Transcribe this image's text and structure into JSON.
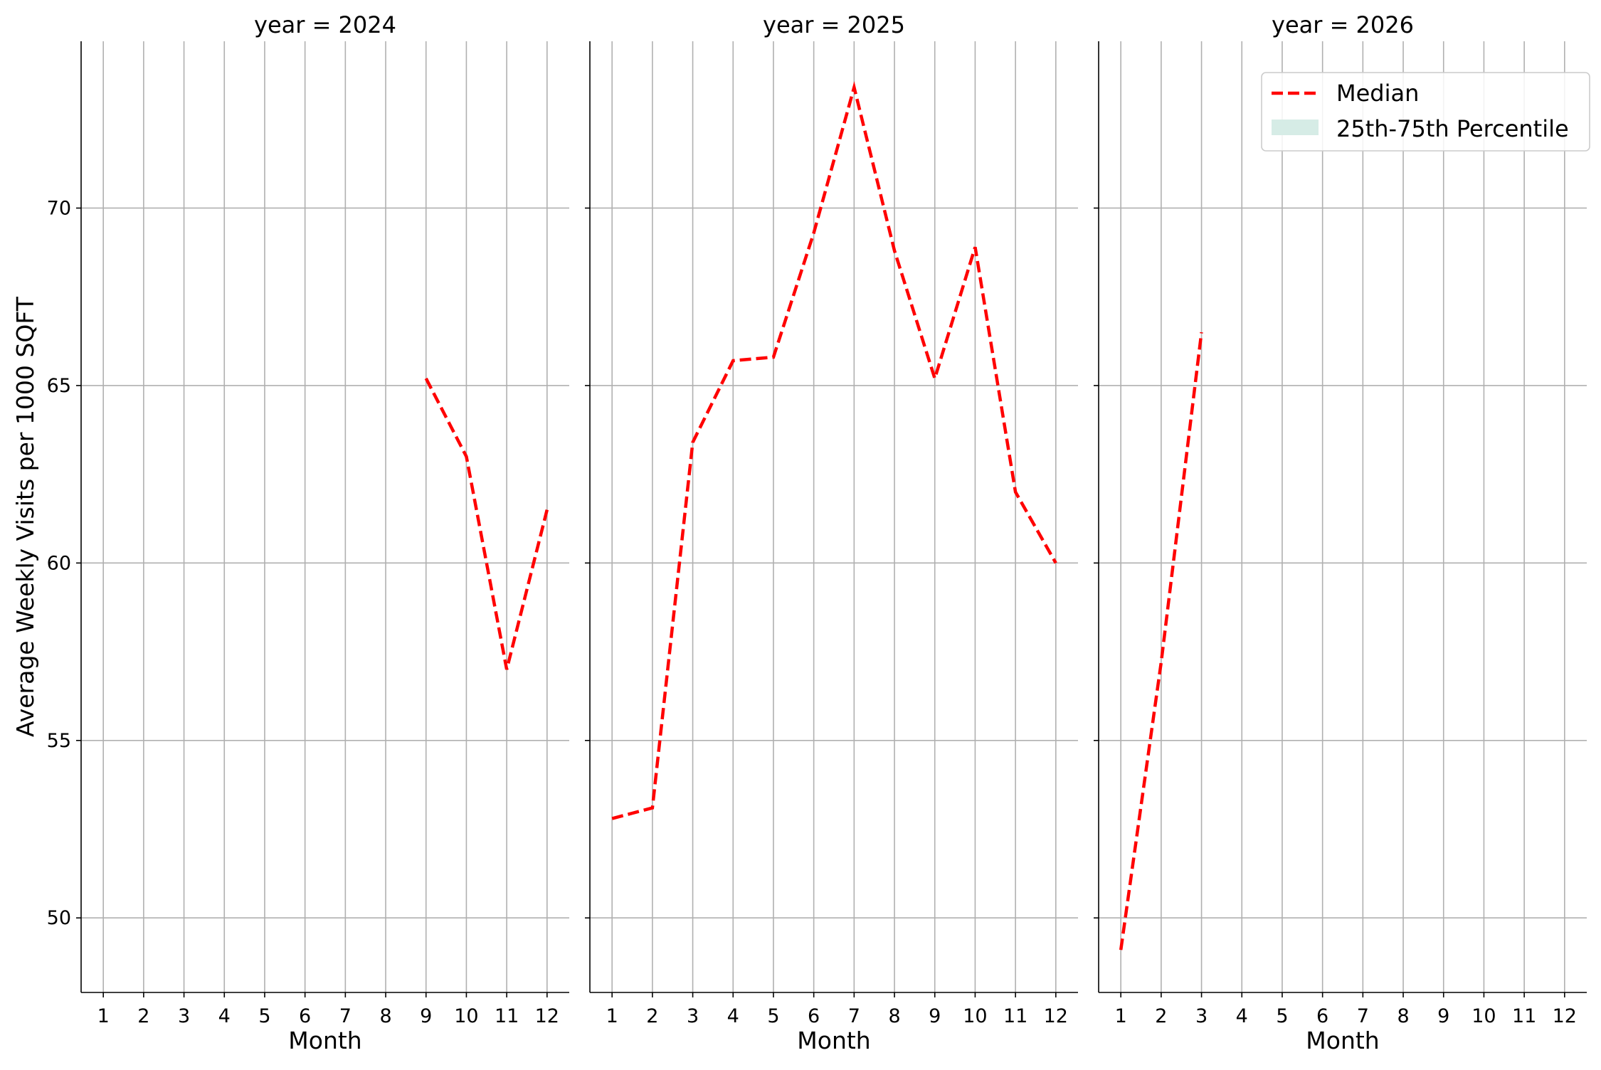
{
  "chart_data": {
    "type": "line",
    "layout": "facet-columns",
    "facet_variable": "year",
    "shared_y_axis": true,
    "ylabel": "Average Weekly Visits per 1000 SQFT",
    "xlabel": "Month",
    "ylim": [
      47.9,
      74.7
    ],
    "xlim": [
      0.45,
      12.55
    ],
    "y_ticks": [
      50,
      55,
      60,
      65,
      70
    ],
    "x_ticks": [
      1,
      2,
      3,
      4,
      5,
      6,
      7,
      8,
      9,
      10,
      11,
      12
    ],
    "grid": true,
    "colors": {
      "median": "#ff0000",
      "band": "#d6ece6"
    },
    "legend": {
      "placement": "top-right",
      "facet_index": 2,
      "entries": [
        {
          "label": "Median",
          "kind": "dashed-line",
          "color": "#ff0000"
        },
        {
          "label": "25th-75th Percentile",
          "kind": "band",
          "color": "#d6ece6"
        }
      ]
    },
    "facets": [
      {
        "title": "year = 2024",
        "series": [
          {
            "name": "Median",
            "x": [
              9,
              10,
              11,
              12
            ],
            "y": [
              65.2,
              63.0,
              57.0,
              61.5
            ]
          }
        ]
      },
      {
        "title": "year = 2025",
        "series": [
          {
            "name": "Median",
            "x": [
              1,
              2,
              3,
              4,
              5,
              6,
              7,
              8,
              9,
              10,
              11,
              12
            ],
            "y": [
              52.8,
              53.1,
              63.4,
              65.7,
              65.8,
              69.3,
              73.4,
              68.8,
              65.2,
              68.9,
              62.0,
              60.0
            ]
          }
        ]
      },
      {
        "title": "year = 2026",
        "series": [
          {
            "name": "Median",
            "x": [
              1,
              2,
              3
            ],
            "y": [
              49.1,
              57.2,
              66.5
            ]
          }
        ]
      }
    ]
  }
}
